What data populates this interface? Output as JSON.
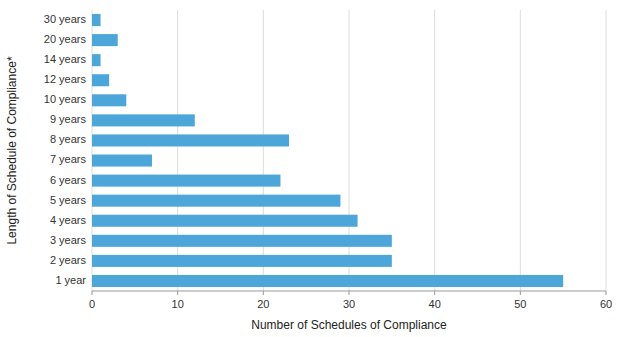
{
  "chart_data": {
    "type": "bar",
    "orientation": "horizontal",
    "categories": [
      "1 year",
      "2 years",
      "3 years",
      "4 years",
      "5 years",
      "6 years",
      "7 years",
      "8 years",
      "9 years",
      "10 years",
      "12 years",
      "14 years",
      "20 years",
      "30 years"
    ],
    "values": [
      55,
      35,
      35,
      31,
      29,
      22,
      7,
      23,
      12,
      4,
      2,
      1,
      3,
      1
    ],
    "color": "#4da6d9",
    "xlabel": "Number of Schedules of Compliance",
    "ylabel": "Length of Schedule of Compliance*",
    "xlim": [
      0,
      60
    ],
    "xticks": [
      0,
      10,
      20,
      30,
      40,
      50,
      60
    ],
    "grid": true
  }
}
